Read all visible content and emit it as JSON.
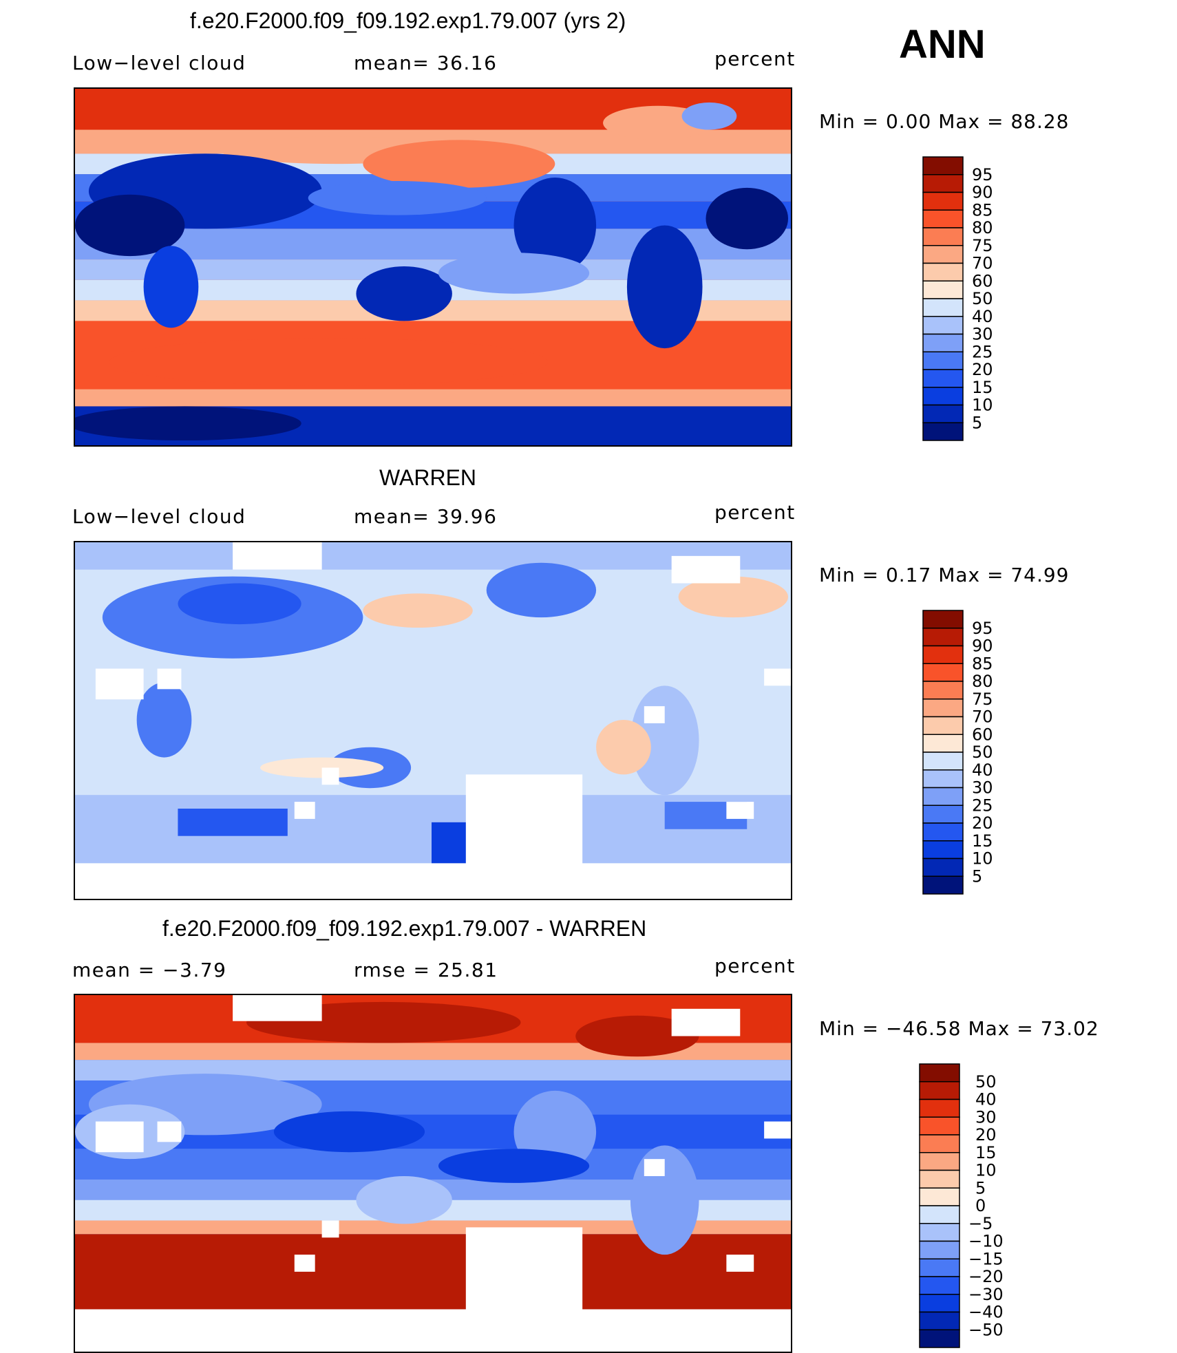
{
  "season": "ANN",
  "colors": {
    "seq": [
      "#00137a",
      "#0228b5",
      "#0a3ee0",
      "#2457f0",
      "#4a79f5",
      "#7ea0f7",
      "#a9c2fa",
      "#d3e4fb",
      "#fde8d6",
      "#fccbac",
      "#fba883",
      "#fb7d53",
      "#f9532a",
      "#e2300e",
      "#b71b05",
      "#830d00"
    ],
    "diff": [
      "#00137a",
      "#0228b5",
      "#0a3ee0",
      "#2457f0",
      "#4a79f5",
      "#7ea0f7",
      "#a9c2fa",
      "#d3e4fb",
      "#fde8d6",
      "#fccbac",
      "#fba883",
      "#fb7d53",
      "#f9532a",
      "#e2300e",
      "#b71b05",
      "#830d00"
    ]
  },
  "panels": [
    {
      "title": "f.e20.F2000.f09_f09.192.exp1.79.007 (yrs 2)",
      "left_label": "Low−level cloud",
      "center_label": "mean=   36.16",
      "right_label": "percent",
      "min_max": "Min  =     0.00  Max  =    88.28",
      "colorbar_ticks": [
        "95",
        "90",
        "85",
        "80",
        "75",
        "70",
        "60",
        "50",
        "40",
        "30",
        "25",
        "20",
        "15",
        "10",
        "5"
      ]
    },
    {
      "title": "WARREN",
      "left_label": "Low−level cloud",
      "center_label": "mean=   39.96",
      "right_label": "percent",
      "min_max": "Min  =     0.17  Max  =    74.99",
      "colorbar_ticks": [
        "95",
        "90",
        "85",
        "80",
        "75",
        "70",
        "60",
        "50",
        "40",
        "30",
        "25",
        "20",
        "15",
        "10",
        "5"
      ]
    },
    {
      "title": "f.e20.F2000.f09_f09.192.exp1.79.007 - WARREN",
      "left_label": "mean  =    −3.79",
      "center_label": "rmse  =    25.81",
      "right_label": "percent",
      "min_max": "Min  =  −46.58  Max  =    73.02",
      "colorbar_ticks": [
        "50",
        "40",
        "30",
        "20",
        "15",
        "10",
        "5",
        "0",
        "−5",
        "−10",
        "−15",
        "−20",
        "−30",
        "−40",
        "−50"
      ]
    }
  ]
}
